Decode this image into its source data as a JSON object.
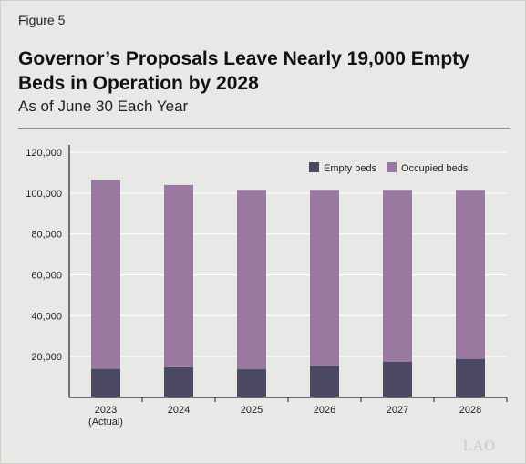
{
  "figure_label": "Figure 5",
  "chart_data": {
    "type": "bar",
    "stacked": true,
    "title": "Governor’s Proposals Leave Nearly 19,000 Empty Beds in Operation by 2028",
    "subtitle": "As of June 30 Each Year",
    "categories": [
      "2023 (Actual)",
      "2024",
      "2025",
      "2026",
      "2027",
      "2028"
    ],
    "category_lines": [
      [
        "2023",
        "(Actual)"
      ],
      [
        "2024"
      ],
      [
        "2025"
      ],
      [
        "2026"
      ],
      [
        "2027"
      ],
      [
        "2028"
      ]
    ],
    "series": [
      {
        "name": "Empty beds",
        "color": "#4b4861",
        "values": [
          14000,
          14800,
          13800,
          15500,
          17400,
          18900
        ]
      },
      {
        "name": "Occupied beds",
        "color": "#9a79a0",
        "values": [
          92400,
          89200,
          87800,
          86100,
          84200,
          82700
        ]
      }
    ],
    "ylim": [
      0,
      120000
    ],
    "yticks": [
      20000,
      40000,
      60000,
      80000,
      100000,
      120000
    ],
    "ytick_labels": [
      "20,000",
      "40,000",
      "60,000",
      "80,000",
      "100,000",
      "120,000"
    ],
    "grid": true,
    "legend_position": "top-right",
    "xlabel": "",
    "ylabel": ""
  },
  "watermark": "LAO"
}
